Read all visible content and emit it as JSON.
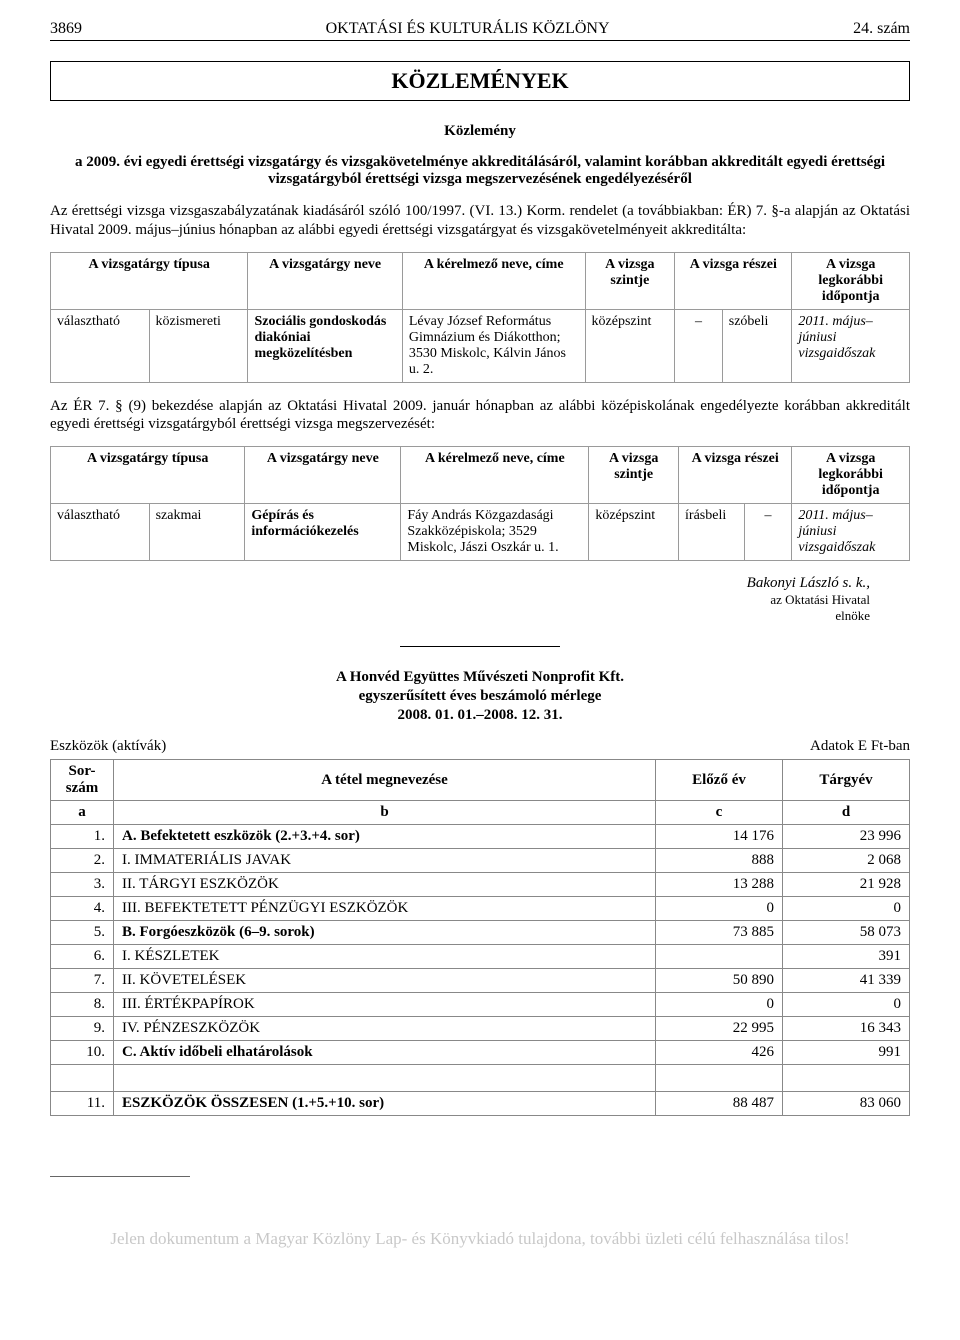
{
  "header": {
    "page_number": "3869",
    "journal": "OKTATÁSI ÉS KULTURÁLIS KÖZLÖNY",
    "issue": "24. szám"
  },
  "section_title": "KÖZLEMÉNYEK",
  "announcement": {
    "label": "Közlemény",
    "subtitle": "a 2009. évi egyedi érettségi vizsgatárgy és vizsgakövetelménye akkreditálásáról, valamint korábban akkreditált egyedi érettségi vizsgatárgyból érettségi vizsga megszervezésének engedélyezéséről"
  },
  "para1": "Az érettségi vizsga vizsgaszabályzatának kiadásáról szóló 100/1997. (VI. 13.) Korm. rendelet (a továbbiakban: ÉR) 7. §-a alapján az Oktatási Hivatal 2009. május–június hónapban az alábbi egyedi érettségi vizsgatárgyat és vizsgakövetelményeit akkreditálta:",
  "table_headers": {
    "subject_type": "A vizsgatárgy típusa",
    "subject_name": "A vizsgatárgy neve",
    "applicant": "A kérelmező neve, címe",
    "level": "A vizsga szintje",
    "parts": "A vizsga részei",
    "earliest": "A vizsga legkorábbi időpontja"
  },
  "table1": {
    "type_a": "választható",
    "type_b": "közismereti",
    "subject": "Szociális gondoskodás diakóniai megközelítésben",
    "applicant": "Lévay József Református Gimnázium és Diákotthon; 3530 Miskolc, Kálvin János u. 2.",
    "level": "középszint",
    "part_a": "–",
    "part_b": "szóbeli",
    "date": "2011. május–júniusi vizsgaidőszak"
  },
  "para2": "Az ÉR 7. § (9) bekezdése alapján az Oktatási Hivatal 2009. január hónapban az alábbi középiskolának engedélyezte korábban akkreditált egyedi érettségi vizsgatárgyból érettségi vizsga megszervezését:",
  "table2": {
    "type_a": "választható",
    "type_b": "szakmai",
    "subject": "Gépírás és információkezelés",
    "applicant": "Fáy András Közgazdasági Szakközépiskola; 3529 Miskolc, Jászi Oszkár u. 1.",
    "level": "középszint",
    "part_a": "írásbeli",
    "part_b": "–",
    "date": "2011. május–júniusi vizsgaidőszak"
  },
  "signature": {
    "name": "Bakonyi László s. k.,",
    "title1": "az Oktatási Hivatal",
    "title2": "elnöke"
  },
  "balance": {
    "title1": "A Honvéd Együttes Művészeti Nonprofit Kft.",
    "title2": "egyszerűsített éves beszámoló mérlege",
    "title3": "2008. 01. 01.–2008. 12. 31.",
    "left_label": "Eszközök (aktívák)",
    "right_label": "Adatok E Ft-ban",
    "columns": {
      "sor": "Sor-szám",
      "name": "A tétel megnevezése",
      "prev": "Előző év",
      "curr": "Tárgyév",
      "a": "a",
      "b": "b",
      "c": "c",
      "d": "d"
    },
    "rows": [
      {
        "n": "1.",
        "name": "A. Befektetett eszközök (2.+3.+4. sor)",
        "prev": "14 176",
        "curr": "23 996",
        "bold": true
      },
      {
        "n": "2.",
        "name": "I. IMMATERIÁLIS JAVAK",
        "prev": "888",
        "curr": "2 068",
        "bold": false
      },
      {
        "n": "3.",
        "name": "II. TÁRGYI ESZKÖZÖK",
        "prev": "13 288",
        "curr": "21 928",
        "bold": false
      },
      {
        "n": "4.",
        "name": "III. BEFEKTETETT PÉNZÜGYI ESZKÖZÖK",
        "prev": "0",
        "curr": "0",
        "bold": false
      },
      {
        "n": "5.",
        "name": "B. Forgóeszközök (6–9. sorok)",
        "prev": "73 885",
        "curr": "58 073",
        "bold": true
      },
      {
        "n": "6.",
        "name": "I. KÉSZLETEK",
        "prev": "",
        "curr": "391",
        "bold": false
      },
      {
        "n": "7.",
        "name": "II. KÖVETELÉSEK",
        "prev": "50 890",
        "curr": "41 339",
        "bold": false
      },
      {
        "n": "8.",
        "name": "III. ÉRTÉKPAPÍROK",
        "prev": "0",
        "curr": "0",
        "bold": false
      },
      {
        "n": "9.",
        "name": "IV. PÉNZESZKÖZÖK",
        "prev": "22 995",
        "curr": "16 343",
        "bold": false
      },
      {
        "n": "10.",
        "name": "C. Aktív időbeli elhatárolások",
        "prev": "426",
        "curr": "991",
        "bold": true
      }
    ],
    "total": {
      "n": "11.",
      "name": "ESZKÖZÖK ÖSSZESEN (1.+5.+10. sor)",
      "prev": "88 487",
      "curr": "83 060"
    }
  },
  "watermark_text": "Jelen dokumentum a Magyar Közlöny Lap- és Könyvkiadó tulajdona, további üzleti célú felhasználása tilos!"
}
